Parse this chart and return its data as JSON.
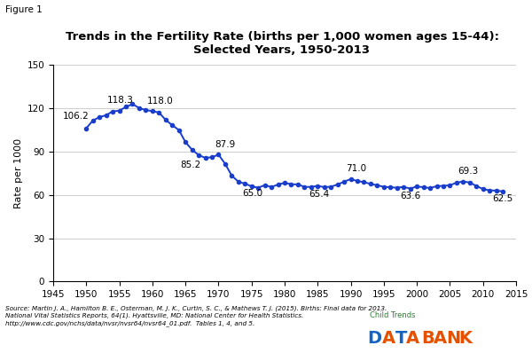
{
  "title_line1": "Trends in the Fertility Rate (births per 1,000 women ages 15-44):",
  "title_line2": "Selected Years, 1950-2013",
  "figure_label": "Figure 1",
  "ylabel": "Rate per 1000",
  "xlim": [
    1945,
    2015
  ],
  "ylim": [
    0,
    150
  ],
  "yticks": [
    0,
    30,
    60,
    90,
    120,
    150
  ],
  "xticks": [
    1945,
    1950,
    1955,
    1960,
    1965,
    1970,
    1975,
    1980,
    1985,
    1990,
    1995,
    2000,
    2005,
    2010,
    2015
  ],
  "line_color": "#1a3ecc",
  "marker_color": "#1a3ecc",
  "years": [
    1950,
    1951,
    1952,
    1953,
    1954,
    1955,
    1956,
    1957,
    1958,
    1959,
    1960,
    1961,
    1962,
    1963,
    1964,
    1965,
    1966,
    1967,
    1968,
    1969,
    1970,
    1971,
    1972,
    1973,
    1974,
    1975,
    1976,
    1977,
    1978,
    1979,
    1980,
    1981,
    1982,
    1983,
    1984,
    1985,
    1986,
    1987,
    1988,
    1989,
    1990,
    1991,
    1992,
    1993,
    1994,
    1995,
    1996,
    1997,
    1998,
    1999,
    2000,
    2001,
    2002,
    2003,
    2004,
    2005,
    2006,
    2007,
    2008,
    2009,
    2010,
    2011,
    2012,
    2013
  ],
  "values": [
    106.2,
    111.5,
    113.9,
    115.2,
    117.9,
    118.3,
    121.0,
    122.9,
    120.2,
    118.8,
    118.0,
    117.1,
    112.0,
    108.3,
    105.0,
    96.6,
    91.3,
    87.6,
    85.7,
    86.1,
    87.9,
    81.6,
    73.4,
    69.2,
    67.8,
    66.0,
    65.0,
    66.8,
    65.5,
    67.2,
    68.4,
    67.4,
    67.3,
    65.6,
    65.5,
    66.3,
    65.4,
    65.7,
    67.2,
    69.2,
    71.0,
    69.6,
    68.9,
    67.6,
    66.7,
    65.6,
    65.3,
    65.0,
    65.6,
    64.4,
    65.9,
    65.3,
    64.8,
    66.1,
    66.3,
    66.7,
    68.5,
    69.3,
    68.6,
    66.2,
    64.1,
    63.2,
    63.0,
    62.5
  ],
  "bg_color": "#ffffff",
  "grid_color": "#bbbbbb",
  "child_trends_color": "#2e7d32",
  "data_blue": "#1565c0",
  "bank_orange": "#e65100",
  "source_line1": "Source: Martin J. A., Hamilton B. E., Osterman, M. J. K., Curtin, S. C., & Mathews T. J. (2015). Births: Final data for 2013.",
  "source_line2": "National Vital Statistics Reports, 64(1). Hyattsville, MD: National Center for Health Statistics.",
  "source_line3": "http://www.cdc.gov/nchs/data/nvsr/nvsr64/nvsr64_01.pdf.  Tables 1, 4, and 5."
}
